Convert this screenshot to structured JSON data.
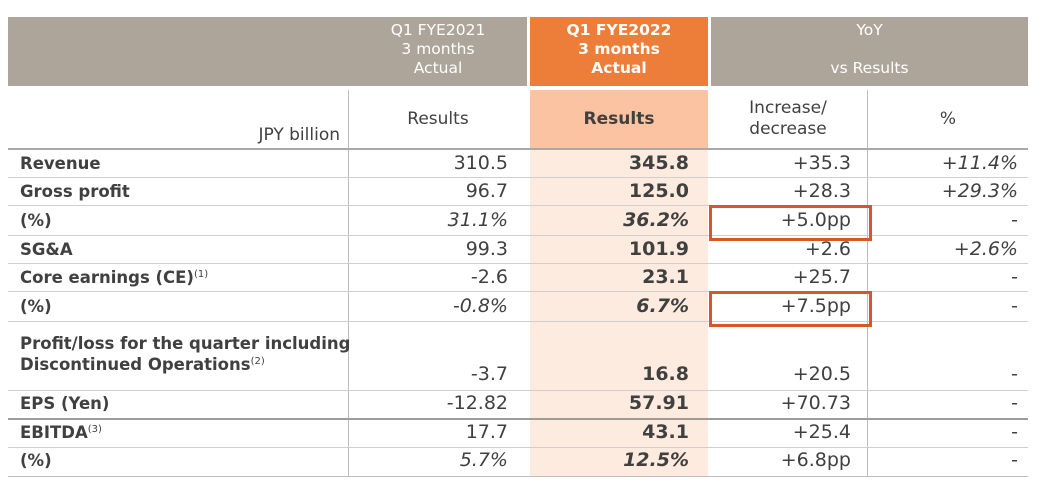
{
  "header": {
    "col1": {
      "line1": "Q1 FYE2021",
      "line2": "3 months",
      "line3": "Actual"
    },
    "col2": {
      "line1": "Q1 FYE2022",
      "line2": "3 months",
      "line3": "Actual"
    },
    "yoy": {
      "title": "YoY",
      "subtitle": "vs Results"
    }
  },
  "subheader": {
    "unit_label": "JPY billion",
    "col1": "Results",
    "col2": "Results",
    "col3": "Increase/ decrease",
    "col4": "%"
  },
  "rows": [
    {
      "label": "Revenue",
      "sup": "",
      "fy21": "310.5",
      "fy22": "345.8",
      "diff": "+35.3",
      "pct": "+11.4%"
    },
    {
      "label": "Gross profit",
      "sup": "",
      "fy21": "96.7",
      "fy22": "125.0",
      "diff": "+28.3",
      "pct": "+29.3%"
    },
    {
      "label": "(%)",
      "sup": "",
      "fy21": "31.1%",
      "fy22": "36.2%",
      "diff": "+5.0pp",
      "pct": "-"
    },
    {
      "label": "SG&A",
      "sup": "",
      "fy21": "99.3",
      "fy22": "101.9",
      "diff": "+2.6",
      "pct": "+2.6%"
    },
    {
      "label": "Core earnings (CE)",
      "sup": "(1)",
      "fy21": "-2.6",
      "fy22": "23.1",
      "diff": "+25.7",
      "pct": "-"
    },
    {
      "label": "(%)",
      "sup": "",
      "fy21": "-0.8%",
      "fy22": "6.7%",
      "diff": "+7.5pp",
      "pct": "-"
    },
    {
      "label": "Profit/loss for the quarter including",
      "label2": "Discontinued Operations",
      "sup": "(2)",
      "fy21": "-3.7",
      "fy22": "16.8",
      "diff": "+20.5",
      "pct": "-"
    },
    {
      "label": "EPS (Yen)",
      "sup": "",
      "fy21": "-12.82",
      "fy22": "57.91",
      "diff": "+70.73",
      "pct": "-"
    },
    {
      "label": "EBITDA",
      "sup": "(3)",
      "fy21": "17.7",
      "fy22": "43.1",
      "diff": "+25.4",
      "pct": "-"
    },
    {
      "label": "(%)",
      "sup": "",
      "fy21": "5.7%",
      "fy22": "12.5%",
      "diff": "+6.8pp",
      "pct": "-"
    }
  ],
  "colors": {
    "header_gray": "#ada59a",
    "header_orange": "#ec7e3a",
    "highlight_box": "#d5582a",
    "column_tint": "#fdebdf"
  }
}
